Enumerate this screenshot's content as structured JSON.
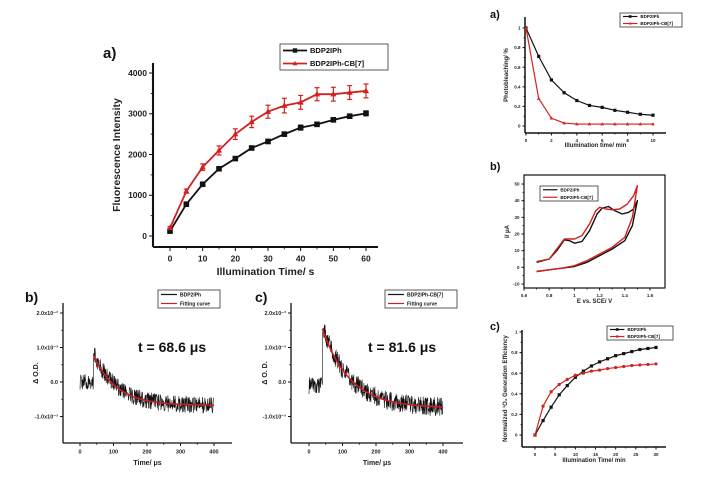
{
  "chart_data": [
    {
      "id": "main_a",
      "panel_label": "a)",
      "type": "line",
      "title": "",
      "xlabel": "Illumination Time/ s",
      "ylabel": "Fluorescence Intensity",
      "xlim": [
        -5,
        65
      ],
      "ylim": [
        -400,
        4400
      ],
      "xticks": [
        0,
        10,
        20,
        30,
        40,
        50,
        60
      ],
      "yticks": [
        0,
        1000,
        2000,
        3000,
        4000
      ],
      "x": [
        0,
        5,
        10,
        15,
        20,
        25,
        30,
        35,
        40,
        45,
        50,
        55,
        60
      ],
      "legend_position": "top-right",
      "series": [
        {
          "name": "BDP2IPh",
          "color": "#111111",
          "marker": "square",
          "values": [
            120,
            780,
            1270,
            1650,
            1900,
            2160,
            2320,
            2500,
            2660,
            2740,
            2850,
            2940,
            3010
          ],
          "errors": [
            20,
            30,
            40,
            40,
            40,
            40,
            50,
            50,
            60,
            50,
            50,
            50,
            60
          ]
        },
        {
          "name": "BDP2IPh-CB[7]",
          "color": "#d42020",
          "marker": "triangle",
          "values": [
            200,
            1100,
            1690,
            2100,
            2500,
            2800,
            3050,
            3200,
            3280,
            3480,
            3480,
            3520,
            3560
          ],
          "errors": [
            30,
            50,
            80,
            110,
            130,
            140,
            160,
            180,
            170,
            160,
            170,
            170,
            170
          ]
        }
      ]
    },
    {
      "id": "panel_b",
      "panel_label": "b)",
      "type": "line",
      "xlabel": "Time/ μs",
      "ylabel": "Δ O.D.",
      "xlim": [
        -30,
        440
      ],
      "ylim": [
        -0.0017,
        0.0022
      ],
      "xticks": [
        0,
        100,
        200,
        300,
        400
      ],
      "yticks": [
        -0.001,
        0.0,
        0.001,
        0.002
      ],
      "ytick_labels": [
        "-1.0x10⁻³",
        "0.0",
        "1.0x10⁻³",
        "2.0x10⁻³"
      ],
      "annotation": "t = 68.6 μs",
      "legend_position": "top-right",
      "series": [
        {
          "name": "BDP2IPh",
          "color": "#111111",
          "kind": "noisy-signal",
          "baseline_before": 0.0,
          "pulse_time": 40,
          "peak": 0.00085,
          "tau": 68.6,
          "plateau": -0.00068,
          "noise": 0.00025
        },
        {
          "name": "Fitting curve",
          "color": "#cc1f1f",
          "kind": "exponential-fit",
          "start": 40,
          "end": 400,
          "peak": 0.00078,
          "tau": 68.6,
          "plateau": -0.00068
        }
      ]
    },
    {
      "id": "panel_c",
      "panel_label": "c)",
      "type": "line",
      "xlabel": "Time/ μs",
      "ylabel": "Δ O. D.",
      "xlim": [
        -30,
        440
      ],
      "ylim": [
        -0.0017,
        0.0022
      ],
      "xticks": [
        0,
        100,
        200,
        300,
        400
      ],
      "yticks": [
        -0.001,
        0.0,
        0.001,
        0.002
      ],
      "ytick_labels": [
        "-1.0x10⁻³",
        "0.0",
        "1.0x10⁻³",
        "2.0x10⁻³"
      ],
      "annotation": "t = 81.6 μs",
      "legend_position": "top-right",
      "series": [
        {
          "name": "BDP2IPh-CB[7]",
          "color": "#111111",
          "kind": "noisy-signal",
          "baseline_before": -0.0001,
          "pulse_time": 40,
          "peak": 0.0016,
          "tau": 81.6,
          "plateau": -0.00075,
          "noise": 0.00028
        },
        {
          "name": "Fitting curve",
          "color": "#cc1f1f",
          "kind": "exponential-fit",
          "start": 40,
          "end": 400,
          "peak": 0.00155,
          "tau": 81.6,
          "plateau": -0.00075
        }
      ]
    },
    {
      "id": "right_a",
      "panel_label": "a)",
      "type": "line",
      "xlabel": "Illumination time/ min",
      "ylabel": "Photobleaching/ %",
      "xlim": [
        0,
        11
      ],
      "ylim": [
        -0.05,
        1.1
      ],
      "xticks": [
        0,
        2,
        4,
        6,
        8,
        10
      ],
      "yticks": [
        0.0,
        0.2,
        0.4,
        0.6,
        0.8,
        1.0
      ],
      "x": [
        0,
        1,
        2,
        3,
        4,
        5,
        6,
        7,
        8,
        9,
        10
      ],
      "legend_position": "top-right",
      "series": [
        {
          "name": "BDP2IPh",
          "color": "#111111",
          "marker": "square",
          "values": [
            1.0,
            0.71,
            0.47,
            0.34,
            0.26,
            0.21,
            0.19,
            0.16,
            0.14,
            0.12,
            0.11
          ]
        },
        {
          "name": "BDP2IPh-CB[7]",
          "color": "#d42020",
          "marker": "triangle",
          "values": [
            1.0,
            0.28,
            0.08,
            0.03,
            0.02,
            0.02,
            0.02,
            0.02,
            0.02,
            0.02,
            0.02
          ]
        }
      ]
    },
    {
      "id": "right_b",
      "panel_label": "b)",
      "type": "line",
      "xlabel": "E vs. SCE/ V",
      "ylabel": "I/ μA",
      "xlim": [
        0.6,
        1.7
      ],
      "ylim": [
        -15,
        55
      ],
      "xticks": [
        0.6,
        0.8,
        1.0,
        1.2,
        1.4,
        1.6
      ],
      "yticks": [
        -10,
        0,
        10,
        20,
        30,
        40,
        50
      ],
      "legend_position": "top-left",
      "series": [
        {
          "name": "BDP2IPh",
          "color": "#111111",
          "forward": [
            [
              0.7,
              3
            ],
            [
              0.8,
              5
            ],
            [
              0.86,
              10
            ],
            [
              0.92,
              16.5
            ],
            [
              0.96,
              16
            ],
            [
              1.0,
              14.5
            ],
            [
              1.06,
              15.5
            ],
            [
              1.12,
              22
            ],
            [
              1.18,
              32
            ],
            [
              1.22,
              35.5
            ],
            [
              1.27,
              36.5
            ],
            [
              1.32,
              34
            ],
            [
              1.38,
              32
            ],
            [
              1.43,
              33
            ],
            [
              1.47,
              35
            ],
            [
              1.5,
              40
            ]
          ],
          "reverse": [
            [
              1.5,
              40
            ],
            [
              1.46,
              25
            ],
            [
              1.4,
              16
            ],
            [
              1.3,
              11
            ],
            [
              1.2,
              7
            ],
            [
              1.1,
              3
            ],
            [
              1.0,
              0.5
            ],
            [
              0.9,
              -0.5
            ],
            [
              0.8,
              -1.5
            ],
            [
              0.7,
              -2.5
            ]
          ]
        },
        {
          "name": "BDP2IPh-CB[7]",
          "color": "#d42020",
          "forward": [
            [
              0.7,
              3.5
            ],
            [
              0.8,
              5
            ],
            [
              0.86,
              11
            ],
            [
              0.92,
              17
            ],
            [
              0.96,
              17
            ],
            [
              1.0,
              17
            ],
            [
              1.06,
              19
            ],
            [
              1.12,
              26
            ],
            [
              1.17,
              34
            ],
            [
              1.2,
              36
            ],
            [
              1.25,
              35
            ],
            [
              1.3,
              34.5
            ],
            [
              1.36,
              35
            ],
            [
              1.42,
              38
            ],
            [
              1.47,
              43
            ],
            [
              1.5,
              49
            ]
          ],
          "reverse": [
            [
              1.5,
              49
            ],
            [
              1.46,
              30
            ],
            [
              1.4,
              18
            ],
            [
              1.3,
              12
            ],
            [
              1.2,
              8
            ],
            [
              1.1,
              4
            ],
            [
              1.0,
              1
            ],
            [
              0.9,
              -0.5
            ],
            [
              0.8,
              -1.5
            ],
            [
              0.7,
              -2.5
            ]
          ]
        }
      ]
    },
    {
      "id": "right_c",
      "panel_label": "c)",
      "type": "line",
      "xlabel": "Illumination Time/ min",
      "ylabel": "Normalized ¹O₂ Generation Efficiency",
      "xlim": [
        -2,
        32
      ],
      "ylim": [
        -0.08,
        1.0
      ],
      "xticks": [
        0,
        5,
        10,
        15,
        20,
        25,
        30
      ],
      "yticks": [
        0.0,
        0.2,
        0.4,
        0.6,
        0.8,
        1.0
      ],
      "x": [
        0,
        2,
        4,
        6,
        8,
        10,
        12,
        14,
        16,
        18,
        20,
        22,
        24,
        26,
        28,
        30
      ],
      "legend_position": "top-right",
      "series": [
        {
          "name": "BDP2IPh",
          "color": "#111111",
          "marker": "square",
          "values": [
            0.0,
            0.14,
            0.27,
            0.39,
            0.48,
            0.56,
            0.62,
            0.67,
            0.71,
            0.74,
            0.77,
            0.79,
            0.81,
            0.83,
            0.84,
            0.85
          ]
        },
        {
          "name": "BDP2IPh-CB[7]",
          "color": "#d42020",
          "marker": "circle",
          "values": [
            0.0,
            0.28,
            0.42,
            0.49,
            0.54,
            0.58,
            0.6,
            0.62,
            0.63,
            0.645,
            0.655,
            0.665,
            0.675,
            0.68,
            0.685,
            0.69
          ]
        }
      ]
    }
  ]
}
